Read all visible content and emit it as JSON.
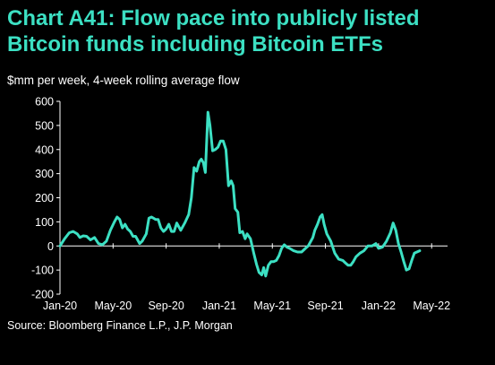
{
  "title": "Chart A41: Flow pace into publicly listed Bitcoin funds including Bitcoin ETFs",
  "subtitle": "$mm per week, 4-week rolling average flow",
  "source": "Source: Bloomberg Finance L.P., J.P. Morgan",
  "colors": {
    "title": "#3ce0c3",
    "line": "#3ce0c3",
    "text": "#ffffff",
    "background": "#000000"
  },
  "chart_data": {
    "type": "line",
    "title": "Chart A41: Flow pace into publicly listed Bitcoin funds including Bitcoin ETFs",
    "ylabel": "$mm per week, 4-week rolling average flow",
    "xlabel": "",
    "ylim": [
      -200,
      600
    ],
    "yticks": [
      -200,
      -100,
      0,
      100,
      200,
      300,
      400,
      500,
      600
    ],
    "xticks": [
      {
        "label": "Jan-20",
        "x": 0
      },
      {
        "label": "May-20",
        "x": 4
      },
      {
        "label": "Sep-20",
        "x": 8
      },
      {
        "label": "Jan-21",
        "x": 12
      },
      {
        "label": "May-21",
        "x": 16
      },
      {
        "label": "Sep-21",
        "x": 20
      },
      {
        "label": "Jan-22",
        "x": 24
      },
      {
        "label": "May-22",
        "x": 28
      }
    ],
    "grid": false,
    "legend": "none",
    "series": [
      {
        "x_unit": "months since Jan-20",
        "points": [
          [
            0.0,
            0
          ],
          [
            0.35,
            30
          ],
          [
            0.7,
            55
          ],
          [
            1.0,
            60
          ],
          [
            1.3,
            50
          ],
          [
            1.5,
            35
          ],
          [
            1.75,
            42
          ],
          [
            2.0,
            40
          ],
          [
            2.3,
            25
          ],
          [
            2.6,
            35
          ],
          [
            2.9,
            10
          ],
          [
            3.2,
            5
          ],
          [
            3.5,
            20
          ],
          [
            3.8,
            65
          ],
          [
            4.1,
            100
          ],
          [
            4.3,
            120
          ],
          [
            4.5,
            110
          ],
          [
            4.7,
            75
          ],
          [
            4.9,
            90
          ],
          [
            5.1,
            70
          ],
          [
            5.3,
            60
          ],
          [
            5.5,
            40
          ],
          [
            5.7,
            40
          ],
          [
            5.9,
            20
          ],
          [
            6.0,
            10
          ],
          [
            6.2,
            20
          ],
          [
            6.5,
            50
          ],
          [
            6.7,
            115
          ],
          [
            6.9,
            120
          ],
          [
            7.2,
            110
          ],
          [
            7.4,
            110
          ],
          [
            7.6,
            75
          ],
          [
            7.8,
            60
          ],
          [
            8.0,
            70
          ],
          [
            8.2,
            90
          ],
          [
            8.4,
            60
          ],
          [
            8.6,
            60
          ],
          [
            8.8,
            95
          ],
          [
            9.1,
            65
          ],
          [
            9.4,
            95
          ],
          [
            9.7,
            130
          ],
          [
            9.9,
            200
          ],
          [
            10.1,
            325
          ],
          [
            10.3,
            310
          ],
          [
            10.5,
            350
          ],
          [
            10.65,
            360
          ],
          [
            10.8,
            345
          ],
          [
            10.95,
            305
          ],
          [
            11.15,
            555
          ],
          [
            11.3,
            500
          ],
          [
            11.5,
            395
          ],
          [
            11.7,
            400
          ],
          [
            11.9,
            410
          ],
          [
            12.1,
            435
          ],
          [
            12.3,
            435
          ],
          [
            12.5,
            400
          ],
          [
            12.7,
            250
          ],
          [
            12.9,
            270
          ],
          [
            13.05,
            250
          ],
          [
            13.2,
            155
          ],
          [
            13.4,
            140
          ],
          [
            13.55,
            55
          ],
          [
            13.75,
            60
          ],
          [
            13.95,
            30
          ],
          [
            14.1,
            50
          ],
          [
            14.35,
            30
          ],
          [
            14.6,
            -30
          ],
          [
            14.8,
            -75
          ],
          [
            15.0,
            -110
          ],
          [
            15.2,
            -120
          ],
          [
            15.35,
            -90
          ],
          [
            15.5,
            -125
          ],
          [
            15.7,
            -80
          ],
          [
            15.9,
            -65
          ],
          [
            16.1,
            -65
          ],
          [
            16.3,
            -60
          ],
          [
            16.5,
            -40
          ],
          [
            16.7,
            -10
          ],
          [
            16.9,
            5
          ],
          [
            17.1,
            -5
          ],
          [
            17.3,
            -10
          ],
          [
            17.6,
            -20
          ],
          [
            17.9,
            -25
          ],
          [
            18.2,
            -25
          ],
          [
            18.5,
            -10
          ],
          [
            18.7,
            0
          ],
          [
            18.9,
            20
          ],
          [
            19.05,
            35
          ],
          [
            19.2,
            65
          ],
          [
            19.4,
            90
          ],
          [
            19.6,
            120
          ],
          [
            19.75,
            130
          ],
          [
            19.9,
            90
          ],
          [
            20.1,
            50
          ],
          [
            20.4,
            20
          ],
          [
            20.7,
            -30
          ],
          [
            21.0,
            -55
          ],
          [
            21.3,
            -60
          ],
          [
            21.5,
            -70
          ],
          [
            21.7,
            -80
          ],
          [
            21.9,
            -80
          ],
          [
            22.1,
            -65
          ],
          [
            22.3,
            -45
          ],
          [
            22.6,
            -30
          ],
          [
            22.9,
            -20
          ],
          [
            23.2,
            0
          ],
          [
            23.5,
            0
          ],
          [
            23.8,
            10
          ],
          [
            24.0,
            -10
          ],
          [
            24.3,
            -5
          ],
          [
            24.6,
            20
          ],
          [
            24.9,
            55
          ],
          [
            25.1,
            95
          ],
          [
            25.3,
            65
          ],
          [
            25.5,
            10
          ],
          [
            25.7,
            -25
          ],
          [
            25.9,
            -65
          ],
          [
            26.1,
            -100
          ],
          [
            26.3,
            -95
          ],
          [
            26.5,
            -60
          ],
          [
            26.7,
            -30
          ],
          [
            27.1,
            -20
          ]
        ]
      }
    ]
  }
}
